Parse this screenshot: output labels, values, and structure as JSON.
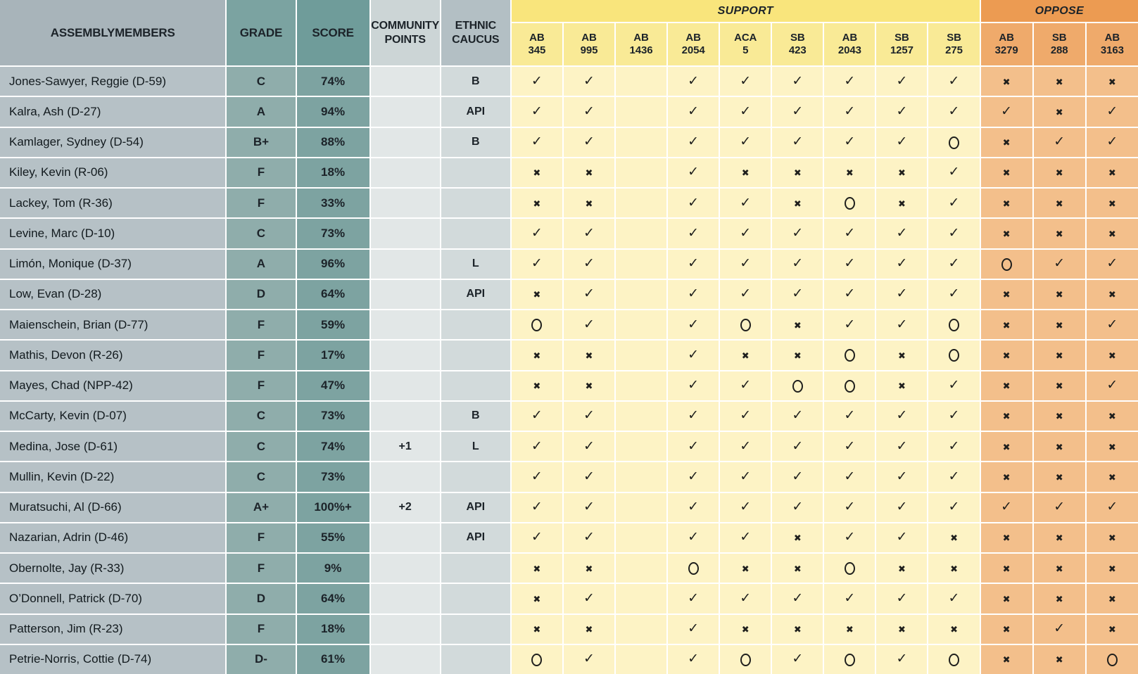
{
  "colors": {
    "ink": "#1c2329",
    "mark": "#1f1f1d",
    "name-header": "#a8b4ba",
    "name-cell": "#b6c1c6",
    "grade-header": "#7ba3a1",
    "grade-cell": "#8fadab",
    "score-header": "#6f9c9a",
    "score-cell": "#7da3a1",
    "comm-header": "#ccd5d6",
    "comm-cell": "#e2e7e7",
    "ethnic-header": "#b3bfc4",
    "ethnic-cell": "#d2dadb",
    "support-band": "#f9e57c",
    "support-bill": "#f9ea96",
    "support-cell": "#fdf3c5",
    "oppose-band": "#ec9b52",
    "oppose-bill": "#efaa6b",
    "oppose-cell": "#f3bf8b"
  },
  "chart_data": {
    "type": "table",
    "column_headers": {
      "assemblymembers": "ASSEMBLYMEMBERS",
      "grade": "GRADE",
      "score": "SCORE",
      "community_points": "COMMUNITY\nPOINTS",
      "ethnic_caucus": "ETHNIC\nCAUCUS",
      "support_group": "SUPPORT",
      "oppose_group": "OPPOSE"
    },
    "support_bills": [
      "AB\n345",
      "AB\n995",
      "AB\n1436",
      "AB\n2054",
      "ACA\n5",
      "SB\n423",
      "AB\n2043",
      "SB\n1257",
      "SB\n275"
    ],
    "oppose_bills": [
      "AB\n3279",
      "SB\n288",
      "AB\n3163"
    ],
    "mark_glyphs": {
      "check": "✓",
      "x": "✖"
    },
    "rows": [
      {
        "name": "Jones-Sawyer, Reggie (D-59)",
        "grade": "C",
        "score": "74%",
        "community_points": "",
        "ethnic_caucus": "B",
        "support": [
          "check",
          "check",
          "",
          "check",
          "check",
          "check",
          "check",
          "check",
          "check"
        ],
        "oppose": [
          "x",
          "x",
          "x"
        ]
      },
      {
        "name": "Kalra, Ash (D-27)",
        "grade": "A",
        "score": "94%",
        "community_points": "",
        "ethnic_caucus": "API",
        "support": [
          "check",
          "check",
          "",
          "check",
          "check",
          "check",
          "check",
          "check",
          "check"
        ],
        "oppose": [
          "check",
          "x",
          "check"
        ]
      },
      {
        "name": "Kamlager, Sydney (D-54)",
        "grade": "B+",
        "score": "88%",
        "community_points": "",
        "ethnic_caucus": "B",
        "support": [
          "check",
          "check",
          "",
          "check",
          "check",
          "check",
          "check",
          "check",
          "o"
        ],
        "oppose": [
          "x",
          "check",
          "check"
        ]
      },
      {
        "name": "Kiley, Kevin (R-06)",
        "grade": "F",
        "score": "18%",
        "community_points": "",
        "ethnic_caucus": "",
        "support": [
          "x",
          "x",
          "",
          "check",
          "x",
          "x",
          "x",
          "x",
          "check"
        ],
        "oppose": [
          "x",
          "x",
          "x"
        ]
      },
      {
        "name": "Lackey, Tom (R-36)",
        "grade": "F",
        "score": "33%",
        "community_points": "",
        "ethnic_caucus": "",
        "support": [
          "x",
          "x",
          "",
          "check",
          "check",
          "x",
          "o",
          "x",
          "check"
        ],
        "oppose": [
          "x",
          "x",
          "x"
        ]
      },
      {
        "name": "Levine, Marc (D-10)",
        "grade": "C",
        "score": "73%",
        "community_points": "",
        "ethnic_caucus": "",
        "support": [
          "check",
          "check",
          "",
          "check",
          "check",
          "check",
          "check",
          "check",
          "check"
        ],
        "oppose": [
          "x",
          "x",
          "x"
        ]
      },
      {
        "name": "Limón, Monique (D-37)",
        "grade": "A",
        "score": "96%",
        "community_points": "",
        "ethnic_caucus": "L",
        "support": [
          "check",
          "check",
          "",
          "check",
          "check",
          "check",
          "check",
          "check",
          "check"
        ],
        "oppose": [
          "o",
          "check",
          "check"
        ]
      },
      {
        "name": "Low, Evan (D-28)",
        "grade": "D",
        "score": "64%",
        "community_points": "",
        "ethnic_caucus": "API",
        "support": [
          "x",
          "check",
          "",
          "check",
          "check",
          "check",
          "check",
          "check",
          "check"
        ],
        "oppose": [
          "x",
          "x",
          "x"
        ]
      },
      {
        "name": "Maienschein, Brian (D-77)",
        "grade": "F",
        "score": "59%",
        "community_points": "",
        "ethnic_caucus": "",
        "support": [
          "o",
          "check",
          "",
          "check",
          "o",
          "x",
          "check",
          "check",
          "o"
        ],
        "oppose": [
          "x",
          "x",
          "check"
        ]
      },
      {
        "name": "Mathis, Devon (R-26)",
        "grade": "F",
        "score": "17%",
        "community_points": "",
        "ethnic_caucus": "",
        "support": [
          "x",
          "x",
          "",
          "check",
          "x",
          "x",
          "o",
          "x",
          "o"
        ],
        "oppose": [
          "x",
          "x",
          "x"
        ]
      },
      {
        "name": "Mayes, Chad (NPP-42)",
        "grade": "F",
        "score": "47%",
        "community_points": "",
        "ethnic_caucus": "",
        "support": [
          "x",
          "x",
          "",
          "check",
          "check",
          "o",
          "o",
          "x",
          "check"
        ],
        "oppose": [
          "x",
          "x",
          "check"
        ]
      },
      {
        "name": "McCarty, Kevin (D-07)",
        "grade": "C",
        "score": "73%",
        "community_points": "",
        "ethnic_caucus": "B",
        "support": [
          "check",
          "check",
          "",
          "check",
          "check",
          "check",
          "check",
          "check",
          "check"
        ],
        "oppose": [
          "x",
          "x",
          "x"
        ]
      },
      {
        "name": "Medina, Jose (D-61)",
        "grade": "C",
        "score": "74%",
        "community_points": "+1",
        "ethnic_caucus": "L",
        "support": [
          "check",
          "check",
          "",
          "check",
          "check",
          "check",
          "check",
          "check",
          "check"
        ],
        "oppose": [
          "x",
          "x",
          "x"
        ]
      },
      {
        "name": "Mullin, Kevin (D-22)",
        "grade": "C",
        "score": "73%",
        "community_points": "",
        "ethnic_caucus": "",
        "support": [
          "check",
          "check",
          "",
          "check",
          "check",
          "check",
          "check",
          "check",
          "check"
        ],
        "oppose": [
          "x",
          "x",
          "x"
        ]
      },
      {
        "name": "Muratsuchi, Al (D-66)",
        "grade": "A+",
        "score": "100%+",
        "community_points": "+2",
        "ethnic_caucus": "API",
        "support": [
          "check",
          "check",
          "",
          "check",
          "check",
          "check",
          "check",
          "check",
          "check"
        ],
        "oppose": [
          "check",
          "check",
          "check"
        ]
      },
      {
        "name": "Nazarian, Adrin (D-46)",
        "grade": "F",
        "score": "55%",
        "community_points": "",
        "ethnic_caucus": "API",
        "support": [
          "check",
          "check",
          "",
          "check",
          "check",
          "x",
          "check",
          "check",
          "x"
        ],
        "oppose": [
          "x",
          "x",
          "x"
        ]
      },
      {
        "name": "Obernolte, Jay (R-33)",
        "grade": "F",
        "score": "9%",
        "community_points": "",
        "ethnic_caucus": "",
        "support": [
          "x",
          "x",
          "",
          "o",
          "x",
          "x",
          "o",
          "x",
          "x"
        ],
        "oppose": [
          "x",
          "x",
          "x"
        ]
      },
      {
        "name": "O’Donnell, Patrick (D-70)",
        "grade": "D",
        "score": "64%",
        "community_points": "",
        "ethnic_caucus": "",
        "support": [
          "x",
          "check",
          "",
          "check",
          "check",
          "check",
          "check",
          "check",
          "check"
        ],
        "oppose": [
          "x",
          "x",
          "x"
        ]
      },
      {
        "name": "Patterson, Jim (R-23)",
        "grade": "F",
        "score": "18%",
        "community_points": "",
        "ethnic_caucus": "",
        "support": [
          "x",
          "x",
          "",
          "check",
          "x",
          "x",
          "x",
          "x",
          "x"
        ],
        "oppose": [
          "x",
          "check",
          "x"
        ]
      },
      {
        "name": "Petrie-Norris, Cottie (D-74)",
        "grade": "D-",
        "score": "61%",
        "community_points": "",
        "ethnic_caucus": "",
        "support": [
          "o",
          "check",
          "",
          "check",
          "o",
          "check",
          "o",
          "check",
          "o"
        ],
        "oppose": [
          "x",
          "x",
          "o"
        ]
      }
    ]
  }
}
